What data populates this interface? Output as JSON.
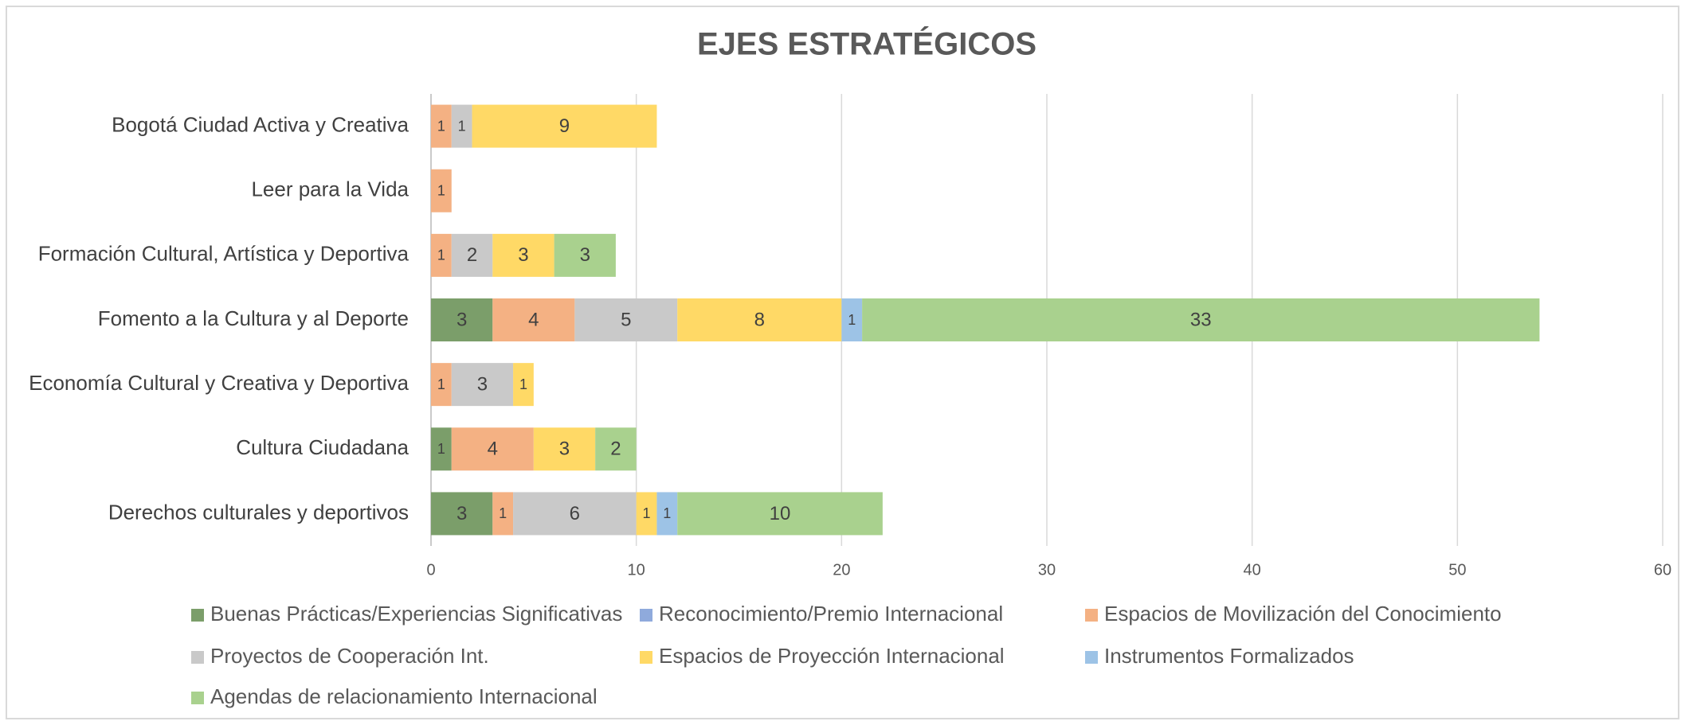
{
  "chart_data": {
    "type": "stacked-barh",
    "title": "EJES ESTRATÉGICOS",
    "categories": [
      "Bogotá Ciudad Activa y Creativa",
      "Leer para la Vida",
      "Formación Cultural, Artística y Deportiva",
      "Fomento a la Cultura y al Deporte",
      "Economía Cultural y Creativa y Deportiva",
      "Cultura Ciudadana",
      "Derechos culturales y deportivos"
    ],
    "series": [
      {
        "name": "Buenas Prácticas/Experiencias Significativas",
        "color": "#7b9e6a",
        "values": [
          0,
          0,
          0,
          3,
          0,
          1,
          3
        ]
      },
      {
        "name": "Reconocimiento/Premio Internacional",
        "color": "#8faadc",
        "values": [
          0,
          0,
          0,
          0,
          0,
          0,
          0
        ]
      },
      {
        "name": "Espacios de Movilización del Conocimiento",
        "color": "#f4b183",
        "values": [
          1,
          1,
          1,
          4,
          1,
          4,
          1
        ]
      },
      {
        "name": "Proyectos de Cooperación Int.",
        "color": "#c9c9c9",
        "values": [
          1,
          0,
          2,
          5,
          3,
          0,
          6
        ]
      },
      {
        "name": "Espacios de Proyección Internacional",
        "color": "#ffd966",
        "values": [
          9,
          0,
          3,
          8,
          1,
          3,
          1
        ]
      },
      {
        "name": "Instrumentos Formalizados",
        "color": "#9dc3e6",
        "values": [
          0,
          0,
          0,
          1,
          0,
          0,
          1
        ]
      },
      {
        "name": "Agendas de relacionamiento Internacional",
        "color": "#a9d18e",
        "values": [
          0,
          0,
          3,
          33,
          0,
          2,
          10
        ]
      }
    ],
    "xlim": [
      0,
      60
    ],
    "xticks": [
      0,
      10,
      20,
      30,
      40,
      50,
      60
    ],
    "grid": true
  }
}
